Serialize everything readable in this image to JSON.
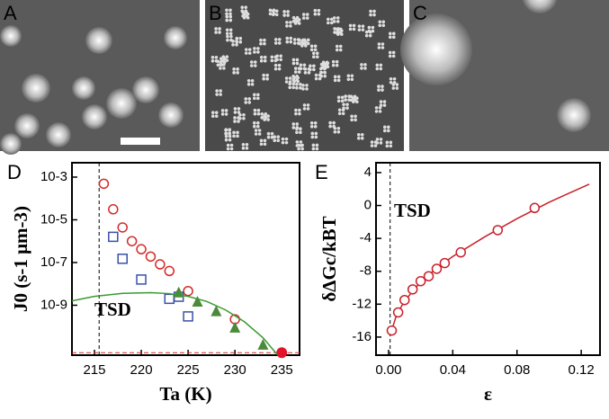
{
  "panels": {
    "labels": [
      "A",
      "B",
      "C"
    ]
  },
  "chart_data": [
    {
      "type": "scatter",
      "panel": "D",
      "xlabel": "Ta (K)",
      "ylabel": "J0 (s-1 μm-3)",
      "annotation": "TSD",
      "xlim": [
        212.6,
        236.9
      ],
      "xticks": [
        215,
        220,
        225,
        230,
        235
      ],
      "ylog": true,
      "ylim": [
        4.6e-12,
        0.0047
      ],
      "yticks": [
        {
          "value": 0.001,
          "label": "10-3"
        },
        {
          "value": 1e-05,
          "label": "10-5"
        },
        {
          "value": 1e-07,
          "label": "10-7"
        },
        {
          "value": 1e-09,
          "label": "10-9"
        }
      ],
      "vline": 215.5,
      "hline": 6e-12,
      "series": [
        {
          "marker": "circle-open",
          "color": "#d42a2a",
          "x": [
            216,
            217,
            218,
            219,
            220,
            221,
            222,
            223,
            225,
            230
          ],
          "values": [
            0.00049,
            3.1e-05,
            4.4e-06,
            1e-06,
            4.2e-07,
            1.9e-07,
            8.2e-08,
            4e-08,
            4.6e-09,
            2.2e-10
          ]
        },
        {
          "marker": "circle",
          "color": "#e0142a",
          "x": [
            235
          ],
          "values": [
            6e-12
          ]
        },
        {
          "marker": "square-open",
          "color": "#3a50a8",
          "x": [
            217,
            218,
            220,
            223,
            224,
            225
          ],
          "values": [
            1.6e-06,
            1.5e-07,
            1.6e-08,
            2e-09,
            2.5e-09,
            3e-10
          ]
        },
        {
          "marker": "triangle",
          "color": "#4a8a3a",
          "x": [
            224,
            226,
            228,
            230,
            233
          ],
          "values": [
            3.8e-09,
            1.4e-09,
            5e-10,
            8.5e-11,
            1.35e-11
          ]
        },
        {
          "marker": "line",
          "color": "#3a9a30",
          "x": [
            212.6,
            215,
            218,
            221,
            223,
            225,
            227,
            229,
            231,
            233,
            234.5
          ],
          "values": [
            1.6e-09,
            2.6e-09,
            3.6e-09,
            3.9e-09,
            3.5e-09,
            2.6e-09,
            1.5e-09,
            6e-10,
            1.7e-10,
            3e-11,
            5e-12
          ]
        }
      ]
    },
    {
      "type": "scatter",
      "panel": "E",
      "xlabel": "ε",
      "ylabel": "δΔGc/kBT",
      "annotation": "TSD",
      "xlim": [
        -0.0078,
        0.1317
      ],
      "xticks": [
        {
          "value": 0,
          "label": "0.00"
        },
        {
          "value": 0.04,
          "label": "0.04"
        },
        {
          "value": 0.08,
          "label": "0.08"
        },
        {
          "value": 0.12,
          "label": "0.12"
        }
      ],
      "ylim": [
        -18.2,
        5.2
      ],
      "yticks": [
        4,
        0,
        -4,
        -8,
        -12,
        -16
      ],
      "vline": 0.001,
      "series": [
        {
          "marker": "line",
          "color": "#c8202a",
          "x": [
            0.001,
            0.005,
            0.01,
            0.02,
            0.03,
            0.04,
            0.06,
            0.08,
            0.1,
            0.125
          ],
          "values": [
            -15.8,
            -13.3,
            -11.6,
            -9.3,
            -7.6,
            -6.2,
            -3.8,
            -1.6,
            0.4,
            2.6
          ]
        },
        {
          "marker": "circle-open",
          "color": "#c8202a",
          "x": [
            0.002,
            0.006,
            0.01,
            0.015,
            0.02,
            0.025,
            0.03,
            0.035,
            0.045,
            0.068,
            0.091
          ],
          "values": [
            -15.2,
            -13,
            -11.5,
            -10.2,
            -9.2,
            -8.6,
            -7.7,
            -7,
            -5.7,
            -3,
            -0.3
          ]
        }
      ]
    }
  ]
}
